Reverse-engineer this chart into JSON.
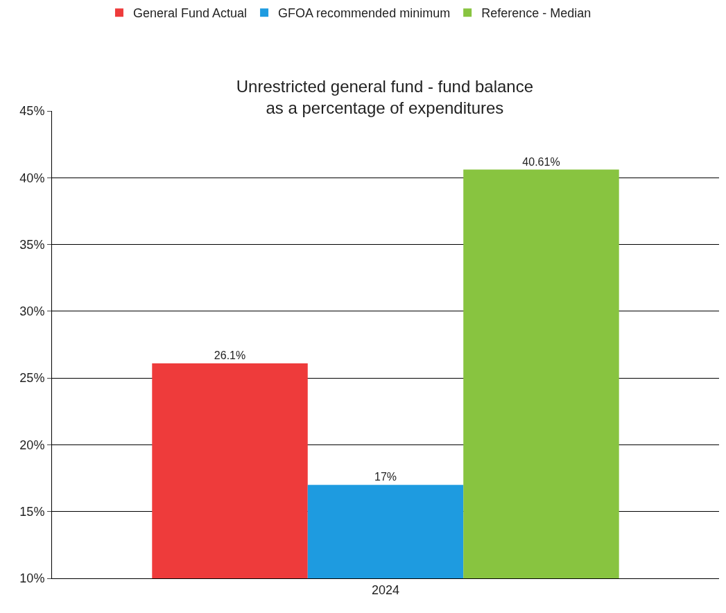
{
  "chart_data": {
    "type": "bar",
    "title": "Unrestricted general fund - fund balance\nas a percentage of expenditures",
    "categories": [
      "2024"
    ],
    "series": [
      {
        "name": "General Fund Actual",
        "color": "#ee3b3b",
        "values": [
          26.1
        ],
        "value_labels": [
          "26.1%"
        ]
      },
      {
        "name": "GFOA recommended minimum",
        "color": "#1e9be0",
        "values": [
          17
        ],
        "value_labels": [
          "17%"
        ]
      },
      {
        "name": "Reference - Median",
        "color": "#88c440",
        "values": [
          40.61
        ],
        "value_labels": [
          "40.61%"
        ]
      }
    ],
    "ylim": [
      10,
      45
    ],
    "yticks": [
      {
        "value": 10,
        "label": "10%"
      },
      {
        "value": 15,
        "label": "15%"
      },
      {
        "value": 20,
        "label": "20%"
      },
      {
        "value": 25,
        "label": "25%"
      },
      {
        "value": 30,
        "label": "30%"
      },
      {
        "value": 35,
        "label": "35%"
      },
      {
        "value": 40,
        "label": "40%"
      },
      {
        "value": 45,
        "label": "45%"
      }
    ],
    "grid": "y",
    "legend": "top"
  }
}
